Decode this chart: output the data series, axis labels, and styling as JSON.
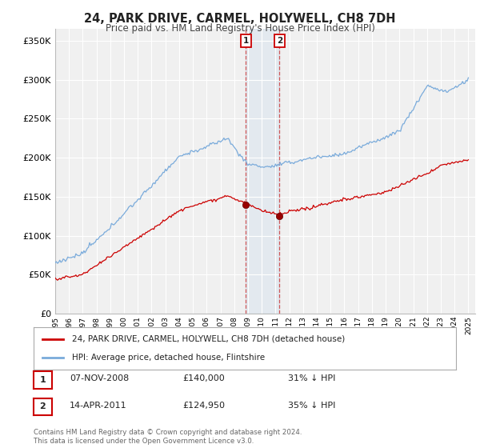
{
  "title": "24, PARK DRIVE, CARMEL, HOLYWELL, CH8 7DH",
  "subtitle": "Price paid vs. HM Land Registry's House Price Index (HPI)",
  "ylabel_ticks": [
    "£0",
    "£50K",
    "£100K",
    "£150K",
    "£200K",
    "£250K",
    "£300K",
    "£350K"
  ],
  "ytick_vals": [
    0,
    50000,
    100000,
    150000,
    200000,
    250000,
    300000,
    350000
  ],
  "ylim": [
    0,
    365000
  ],
  "xlim_start": 1995.0,
  "xlim_end": 2025.5,
  "legend_line1": "24, PARK DRIVE, CARMEL, HOLYWELL, CH8 7DH (detached house)",
  "legend_line2": "HPI: Average price, detached house, Flintshire",
  "transaction1_date": "07-NOV-2008",
  "transaction1_price": "£140,000",
  "transaction1_hpi": "31% ↓ HPI",
  "transaction1_year": 2008.85,
  "transaction1_value": 140000,
  "transaction2_date": "14-APR-2011",
  "transaction2_price": "£124,950",
  "transaction2_hpi": "35% ↓ HPI",
  "transaction2_year": 2011.29,
  "transaction2_value": 124950,
  "red_line_color": "#cc0000",
  "blue_line_color": "#7aabdb",
  "footnote": "Contains HM Land Registry data © Crown copyright and database right 2024.\nThis data is licensed under the Open Government Licence v3.0.",
  "bg_color": "#ffffff",
  "plot_bg_color": "#f0f0f0"
}
